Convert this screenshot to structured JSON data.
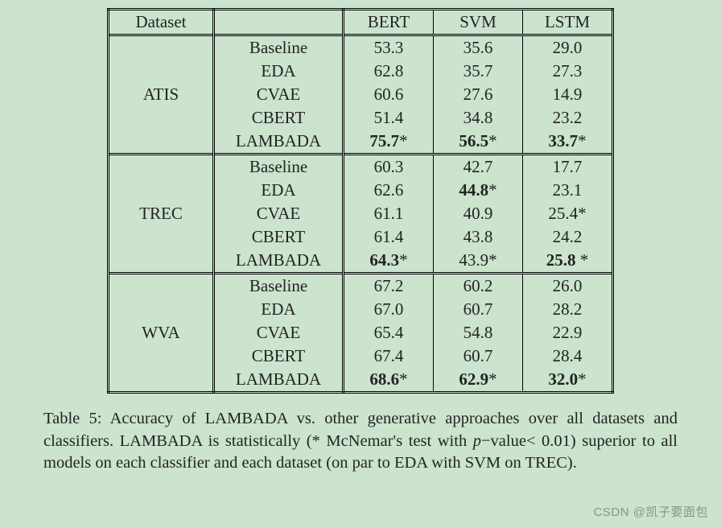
{
  "background_color": "#cce4ce",
  "text_color": "#222222",
  "border_color": "#000000",
  "font_family": "Times New Roman",
  "header_fontsize": 21,
  "caption_fontsize": 20.5,
  "table": {
    "type": "table",
    "columns": [
      "Dataset",
      "",
      "BERT",
      "SVM",
      "LSTM"
    ],
    "blocks": [
      {
        "dataset": "ATIS",
        "rows": [
          {
            "method": "Baseline",
            "bert": {
              "v": "53.3",
              "b": false,
              "s": false
            },
            "svm": {
              "v": "35.6",
              "b": false,
              "s": false
            },
            "lstm": {
              "v": "29.0",
              "b": false,
              "s": false
            }
          },
          {
            "method": "EDA",
            "bert": {
              "v": "62.8",
              "b": false,
              "s": false
            },
            "svm": {
              "v": "35.7",
              "b": false,
              "s": false
            },
            "lstm": {
              "v": "27.3",
              "b": false,
              "s": false
            }
          },
          {
            "method": "CVAE",
            "bert": {
              "v": "60.6",
              "b": false,
              "s": false
            },
            "svm": {
              "v": "27.6",
              "b": false,
              "s": false
            },
            "lstm": {
              "v": "14.9",
              "b": false,
              "s": false
            }
          },
          {
            "method": "CBERT",
            "bert": {
              "v": "51.4",
              "b": false,
              "s": false
            },
            "svm": {
              "v": "34.8",
              "b": false,
              "s": false
            },
            "lstm": {
              "v": "23.2",
              "b": false,
              "s": false
            }
          },
          {
            "method": "LAMBADA",
            "bert": {
              "v": "75.7",
              "b": true,
              "s": true
            },
            "svm": {
              "v": "56.5",
              "b": true,
              "s": true
            },
            "lstm": {
              "v": "33.7",
              "b": true,
              "s": true
            }
          }
        ]
      },
      {
        "dataset": "TREC",
        "rows": [
          {
            "method": "Baseline",
            "bert": {
              "v": "60.3",
              "b": false,
              "s": false
            },
            "svm": {
              "v": "42.7",
              "b": false,
              "s": false
            },
            "lstm": {
              "v": "17.7",
              "b": false,
              "s": false
            }
          },
          {
            "method": "EDA",
            "bert": {
              "v": "62.6",
              "b": false,
              "s": false
            },
            "svm": {
              "v": "44.8",
              "b": true,
              "s": true
            },
            "lstm": {
              "v": "23.1",
              "b": false,
              "s": false
            }
          },
          {
            "method": "CVAE",
            "bert": {
              "v": "61.1",
              "b": false,
              "s": false
            },
            "svm": {
              "v": "40.9",
              "b": false,
              "s": false
            },
            "lstm": {
              "v": "25.4",
              "b": false,
              "s": true
            }
          },
          {
            "method": "CBERT",
            "bert": {
              "v": "61.4",
              "b": false,
              "s": false
            },
            "svm": {
              "v": "43.8",
              "b": false,
              "s": false
            },
            "lstm": {
              "v": "24.2",
              "b": false,
              "s": false
            }
          },
          {
            "method": "LAMBADA",
            "bert": {
              "v": "64.3",
              "b": true,
              "s": true
            },
            "svm": {
              "v": "43.9",
              "b": false,
              "s": true
            },
            "lstm": {
              "v": "25.8 ",
              "b": true,
              "s": true
            }
          }
        ]
      },
      {
        "dataset": "WVA",
        "rows": [
          {
            "method": "Baseline",
            "bert": {
              "v": "67.2",
              "b": false,
              "s": false
            },
            "svm": {
              "v": "60.2",
              "b": false,
              "s": false
            },
            "lstm": {
              "v": "26.0",
              "b": false,
              "s": false
            }
          },
          {
            "method": "EDA",
            "bert": {
              "v": "67.0",
              "b": false,
              "s": false
            },
            "svm": {
              "v": "60.7",
              "b": false,
              "s": false
            },
            "lstm": {
              "v": "28.2",
              "b": false,
              "s": false
            }
          },
          {
            "method": "CVAE",
            "bert": {
              "v": "65.4",
              "b": false,
              "s": false
            },
            "svm": {
              "v": "54.8",
              "b": false,
              "s": false
            },
            "lstm": {
              "v": "22.9",
              "b": false,
              "s": false
            }
          },
          {
            "method": "CBERT",
            "bert": {
              "v": "67.4",
              "b": false,
              "s": false
            },
            "svm": {
              "v": "60.7",
              "b": false,
              "s": false
            },
            "lstm": {
              "v": "28.4",
              "b": false,
              "s": false
            }
          },
          {
            "method": "LAMBADA",
            "bert": {
              "v": "68.6",
              "b": true,
              "s": true
            },
            "svm": {
              "v": "62.9",
              "b": true,
              "s": true
            },
            "lstm": {
              "v": "32.0",
              "b": true,
              "s": true
            }
          }
        ]
      }
    ]
  },
  "caption": {
    "label": "Table 5:",
    "text1": " Accuracy of LAMBADA vs. other generative approaches over all datasets and classifiers. LAMBADA is statistically (* McNemar's test with ",
    "pvar": "p",
    "text2": "−value< 0.01) superior to all models on each classifier and each dataset (on par to EDA with SVM on TREC)."
  },
  "watermark": "CSDN @凯子要面包"
}
